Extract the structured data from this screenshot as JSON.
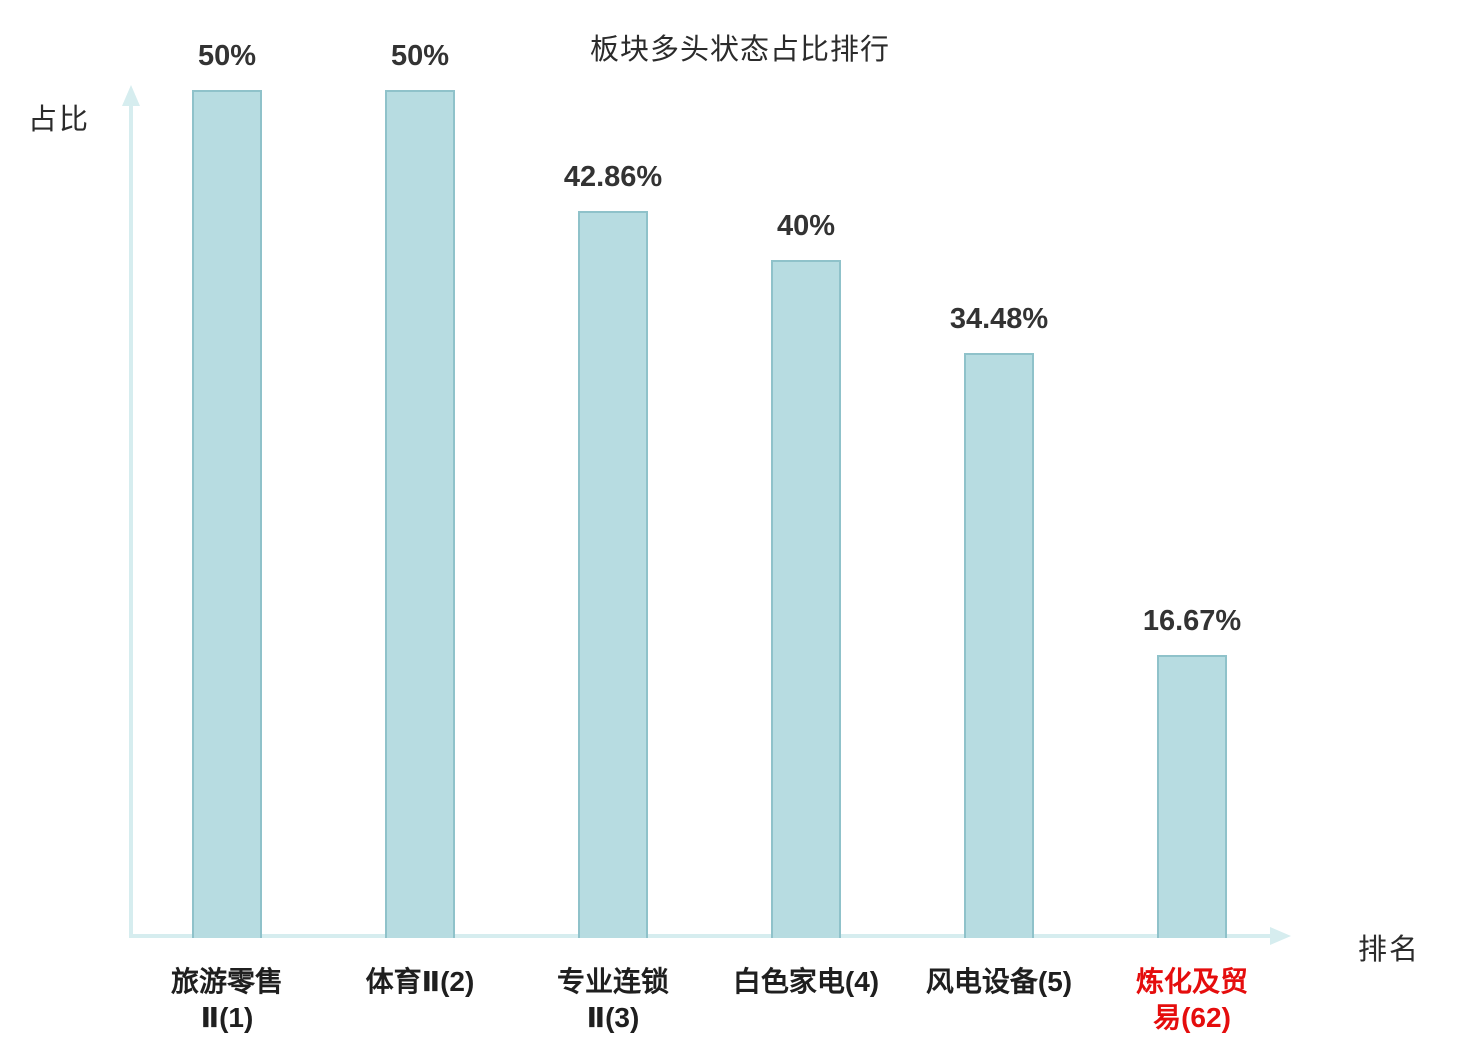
{
  "chart": {
    "title": "板块多头状态占比排行",
    "ylabel": "占比",
    "xlabel": "排名"
  },
  "chart_data": {
    "type": "bar",
    "title": "板块多头状态占比排行",
    "xlabel": "排名",
    "ylabel": "占比",
    "categories": [
      "旅游零售Ⅱ(1)",
      "体育Ⅱ(2)",
      "专业连锁Ⅱ(3)",
      "白色家电(4)",
      "风电设备(5)",
      "炼化及贸易(62)"
    ],
    "category_lines": [
      [
        "旅游零售",
        "Ⅱ(1)"
      ],
      [
        "体育Ⅱ(2)"
      ],
      [
        "专业连锁",
        "Ⅱ(3)"
      ],
      [
        "白色家电(4)"
      ],
      [
        "风电设备(5)"
      ],
      [
        "炼化及贸",
        "易(62)"
      ]
    ],
    "values": [
      50,
      50,
      42.86,
      40,
      34.48,
      16.67
    ],
    "value_labels": [
      "50%",
      "50%",
      "42.86%",
      "40%",
      "34.48%",
      "16.67%"
    ],
    "highlight_index": 5,
    "ylim": [
      0,
      50
    ],
    "grid": false,
    "legend": "none",
    "colors": {
      "bar_fill": "#b7dce1",
      "bar_border": "#8fc2ca",
      "axis": "#d6edef",
      "text": "#333333",
      "highlight_text": "#e50d0d"
    }
  }
}
